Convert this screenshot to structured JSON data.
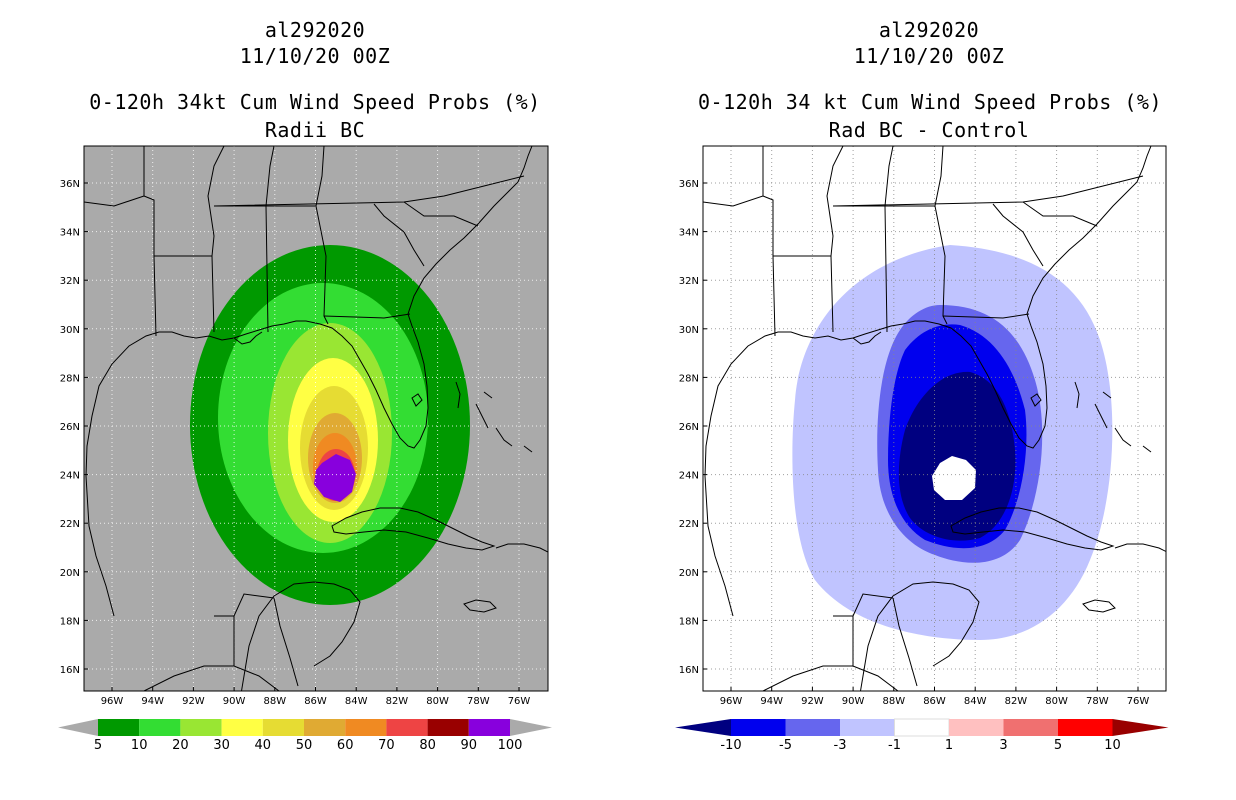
{
  "panels": [
    {
      "storm_id": "al292020",
      "datetime": "11/10/20 00Z",
      "title": "0-120h 34kt Cum Wind Speed Probs (%)",
      "subtitle": "Radii BC",
      "lat_ticks": [
        "36N",
        "34N",
        "32N",
        "30N",
        "28N",
        "26N",
        "24N",
        "22N",
        "20N",
        "18N",
        "16N"
      ],
      "lon_ticks": [
        "96W",
        "94W",
        "92W",
        "90W",
        "88W",
        "86W",
        "84W",
        "82W",
        "80W",
        "78W",
        "76W"
      ],
      "colorbar": {
        "labels": [
          "5",
          "10",
          "20",
          "30",
          "40",
          "50",
          "60",
          "70",
          "80",
          "90",
          "100"
        ],
        "colors": [
          "#009900",
          "#33dd33",
          "#99e633",
          "#ffff44",
          "#e6dc33",
          "#e0aa33",
          "#f08a22",
          "#ee4444",
          "#990000",
          "#8800dd"
        ]
      }
    },
    {
      "storm_id": "al292020",
      "datetime": "11/10/20 00Z",
      "title": "0-120h 34 kt Cum Wind Speed Probs (%)",
      "subtitle": "Rad BC - Control",
      "lat_ticks": [
        "36N",
        "34N",
        "32N",
        "30N",
        "28N",
        "26N",
        "24N",
        "22N",
        "20N",
        "18N",
        "16N"
      ],
      "lon_ticks": [
        "96W",
        "94W",
        "92W",
        "90W",
        "88W",
        "86W",
        "84W",
        "82W",
        "80W",
        "78W",
        "76W"
      ],
      "colorbar": {
        "labels": [
          "-10",
          "-5",
          "-3",
          "-1",
          "1",
          "3",
          "5",
          "10"
        ],
        "colors": [
          "#000080",
          "#0000ee",
          "#6666ee",
          "#c0c4ff",
          "#ffffff",
          "#ffc0c0",
          "#f07070",
          "#ff0000",
          "#990000"
        ]
      }
    }
  ]
}
